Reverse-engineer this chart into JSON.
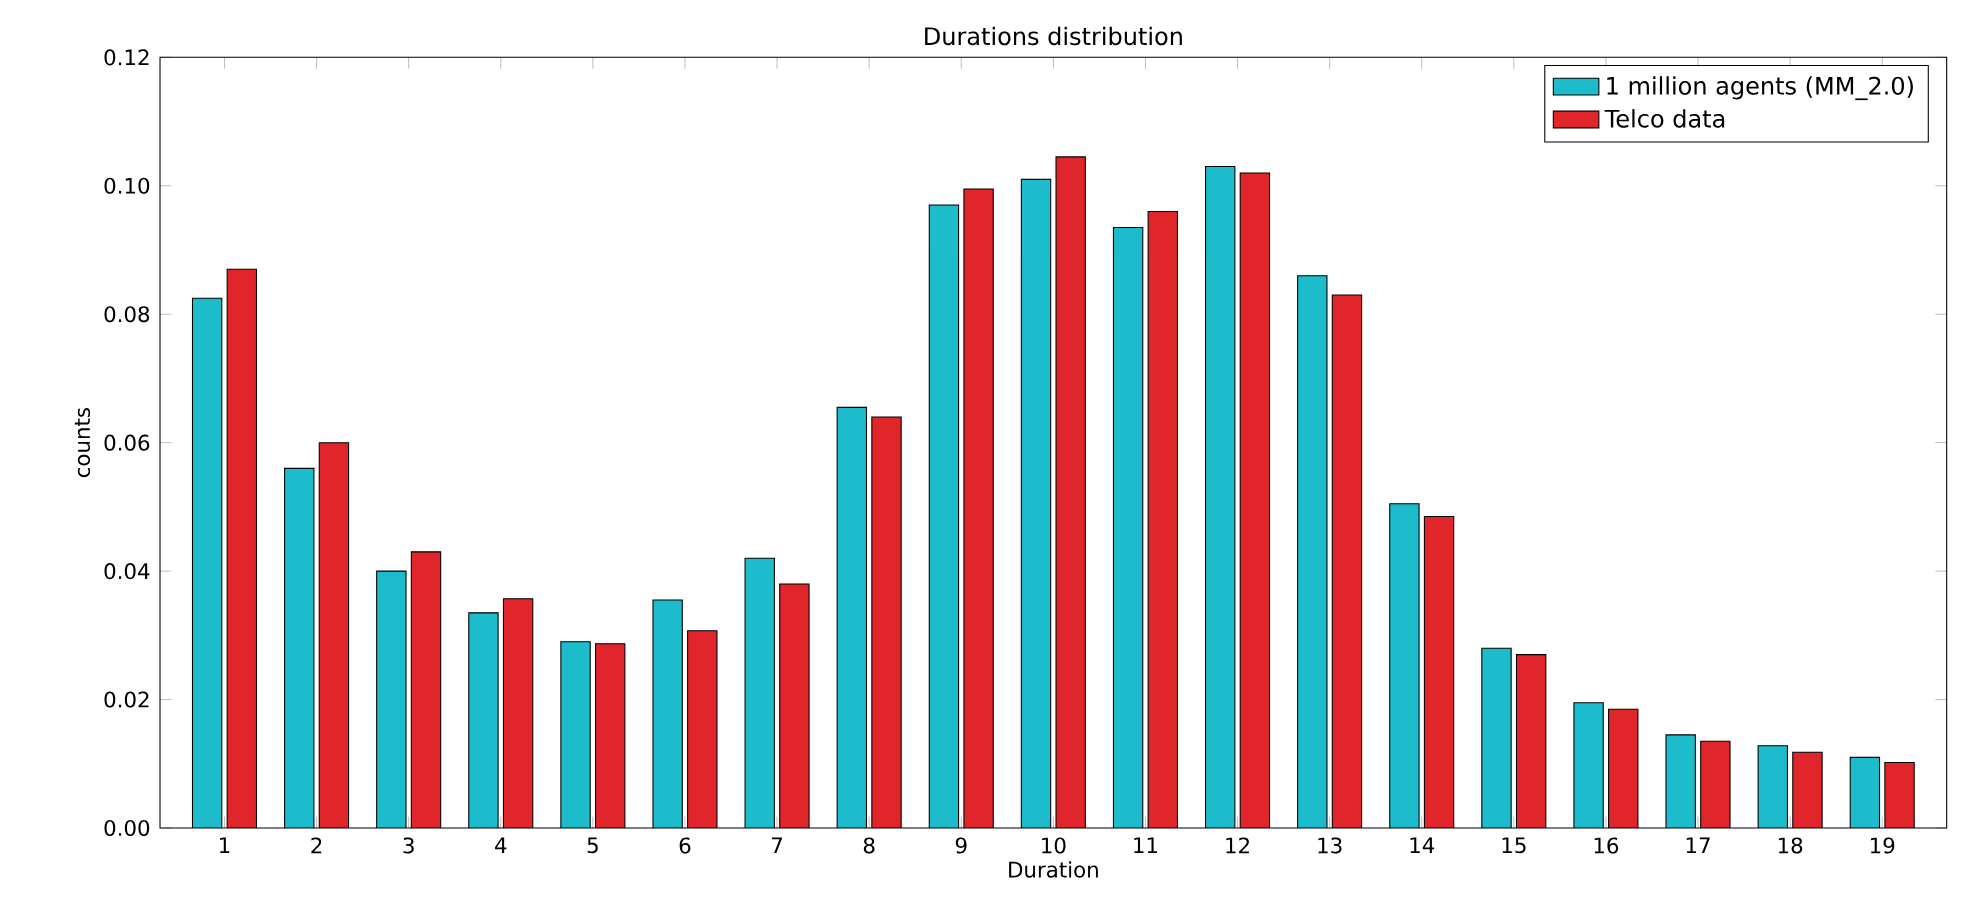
{
  "chart_data": {
    "type": "bar",
    "title": "Durations distribution",
    "xlabel": "Duration",
    "ylabel": "counts",
    "categories": [
      "1",
      "2",
      "3",
      "4",
      "5",
      "6",
      "7",
      "8",
      "9",
      "10",
      "11",
      "12",
      "13",
      "14",
      "15",
      "16",
      "17",
      "18",
      "19"
    ],
    "series": [
      {
        "name": "1 million agents (MM_2.0)",
        "color": "#1cbccc",
        "values": [
          0.0825,
          0.056,
          0.04,
          0.0335,
          0.029,
          0.0355,
          0.042,
          0.0655,
          0.097,
          0.101,
          0.0935,
          0.103,
          0.086,
          0.0505,
          0.028,
          0.0195,
          0.0145,
          0.0128,
          0.011
        ]
      },
      {
        "name": "Telco data",
        "color": "#e0262a",
        "values": [
          0.087,
          0.06,
          0.043,
          0.0357,
          0.0287,
          0.0307,
          0.038,
          0.064,
          0.0995,
          0.1045,
          0.096,
          0.102,
          0.083,
          0.0485,
          0.027,
          0.0185,
          0.0135,
          0.0118,
          0.0102
        ]
      }
    ],
    "ylim": [
      0,
      0.12
    ],
    "yticks": [
      {
        "value": 0,
        "label": "0.00"
      },
      {
        "value": 0.02,
        "label": "0.02"
      },
      {
        "value": 0.04,
        "label": "0.04"
      },
      {
        "value": 0.06,
        "label": "0.06"
      },
      {
        "value": 0.08,
        "label": "0.08"
      },
      {
        "value": 0.1,
        "label": "0.10"
      },
      {
        "value": 0.12,
        "label": "0.12"
      }
    ],
    "legend": "top right",
    "grid": false
  }
}
